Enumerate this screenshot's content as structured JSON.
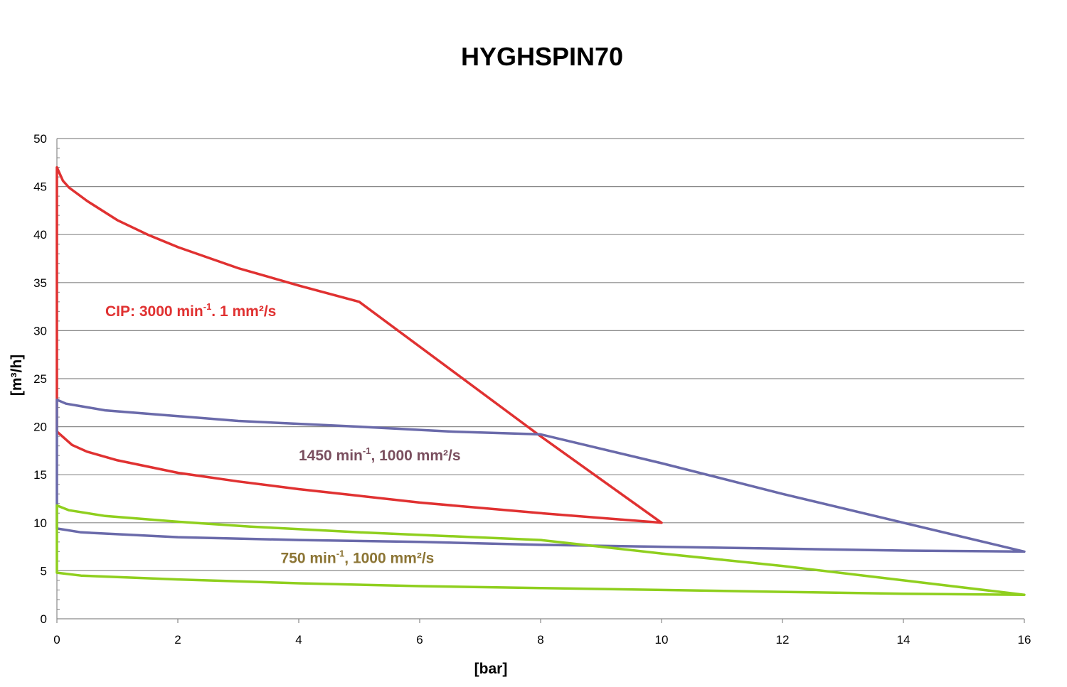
{
  "chart_data": {
    "type": "line",
    "title": "HYGHSPIN70",
    "xlabel": "[bar]",
    "ylabel": "[m³/h]",
    "xlim": [
      0,
      16
    ],
    "ylim": [
      0,
      50
    ],
    "xticks": [
      0,
      2,
      4,
      6,
      8,
      10,
      12,
      14,
      16
    ],
    "yticks": [
      0,
      5,
      10,
      15,
      20,
      25,
      30,
      35,
      40,
      45,
      50
    ],
    "grid": "horizontal",
    "annotations": [
      {
        "id": "cip",
        "text": "CIP: 3000 min",
        "sup": "-1",
        "rest": ". 1 mm²/s",
        "color": "#e03131",
        "x": 0.8,
        "y": 31.5
      },
      {
        "id": "mid",
        "text": "1450 min",
        "sup": "-1",
        "rest": ", 1000 mm²/s",
        "color": "#7a4f5f",
        "x": 4.0,
        "y": 16.5
      },
      {
        "id": "low",
        "text": "750 min",
        "sup": "-1",
        "rest": ", 1000 mm²/s",
        "color": "#8c7535",
        "x": 3.7,
        "y": 5.8
      }
    ],
    "series": [
      {
        "color": "#e03131",
        "points": [
          [
            0,
            47
          ],
          [
            0.1,
            45.6
          ],
          [
            0.2,
            44.9
          ],
          [
            0.5,
            43.5
          ],
          [
            1,
            41.5
          ],
          [
            1.5,
            40
          ],
          [
            2,
            38.7
          ],
          [
            3,
            36.5
          ],
          [
            4,
            34.7
          ],
          [
            5,
            33
          ],
          [
            8,
            19
          ],
          [
            10,
            10
          ],
          [
            8,
            11
          ],
          [
            6,
            12.1
          ],
          [
            5,
            12.8
          ],
          [
            4,
            13.5
          ],
          [
            3,
            14.3
          ],
          [
            2,
            15.2
          ],
          [
            1,
            16.5
          ],
          [
            0.5,
            17.4
          ],
          [
            0.25,
            18.1
          ],
          [
            0,
            19.5
          ],
          [
            0,
            47
          ]
        ]
      },
      {
        "color": "#6a6aaa",
        "points": [
          [
            0,
            22.8
          ],
          [
            0.15,
            22.4
          ],
          [
            0.8,
            21.7
          ],
          [
            2,
            21.1
          ],
          [
            3,
            20.6
          ],
          [
            5,
            20
          ],
          [
            6.5,
            19.5
          ],
          [
            8,
            19.2
          ],
          [
            10,
            16.2
          ],
          [
            12,
            13
          ],
          [
            14,
            10
          ],
          [
            16,
            7
          ],
          [
            14,
            7.1
          ],
          [
            12,
            7.3
          ],
          [
            10,
            7.5
          ],
          [
            8,
            7.7
          ],
          [
            6,
            8
          ],
          [
            4,
            8.2
          ],
          [
            2,
            8.5
          ],
          [
            0.4,
            9
          ],
          [
            0,
            9.4
          ],
          [
            0,
            22.8
          ]
        ]
      },
      {
        "color": "#8fcf1e",
        "points": [
          [
            0,
            11.8
          ],
          [
            0.2,
            11.3
          ],
          [
            0.8,
            10.7
          ],
          [
            2,
            10.1
          ],
          [
            3.2,
            9.6
          ],
          [
            5,
            9
          ],
          [
            6.5,
            8.6
          ],
          [
            8,
            8.2
          ],
          [
            10,
            6.8
          ],
          [
            12,
            5.5
          ],
          [
            14,
            4
          ],
          [
            16,
            2.5
          ],
          [
            14,
            2.6
          ],
          [
            12,
            2.8
          ],
          [
            10,
            3
          ],
          [
            8,
            3.2
          ],
          [
            6,
            3.4
          ],
          [
            4,
            3.7
          ],
          [
            2,
            4.1
          ],
          [
            0.4,
            4.5
          ],
          [
            0,
            4.8
          ],
          [
            0,
            11.8
          ]
        ]
      }
    ]
  }
}
